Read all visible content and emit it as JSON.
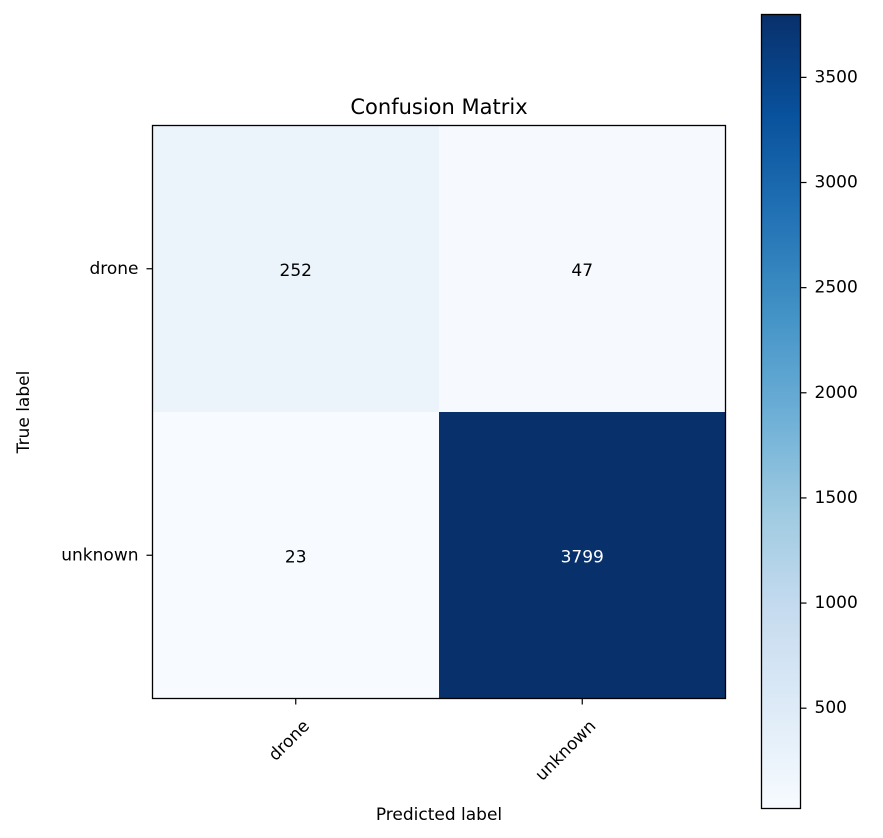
{
  "chart_data": {
    "type": "heatmap",
    "title": "Confusion Matrix",
    "xlabel": "Predicted label",
    "ylabel": "True label",
    "x_categories": [
      "drone",
      "unknown"
    ],
    "y_categories": [
      "drone",
      "unknown"
    ],
    "values": [
      [
        252,
        47
      ],
      [
        23,
        3799
      ]
    ],
    "colormap": "Blues",
    "colorbar": {
      "min": 23,
      "max": 3799,
      "ticks": [
        500,
        1000,
        1500,
        2000,
        2500,
        3000,
        3500
      ]
    },
    "grid": false
  }
}
